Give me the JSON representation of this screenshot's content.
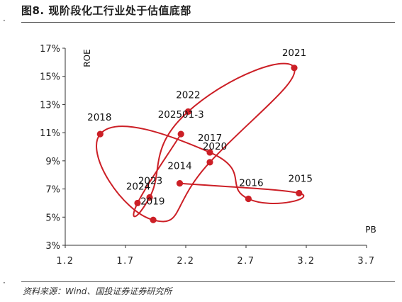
{
  "header": {
    "title": "图8. 现阶段化工行业处于估值底部"
  },
  "footer": {
    "source": "资料来源：Wind、国投证券证券研究所"
  },
  "colors": {
    "series": "#cc1f26",
    "axis": "#333333",
    "text": "#111111"
  },
  "chart_data": {
    "type": "scatter",
    "title": "",
    "xlabel": "PB",
    "ylabel": "ROE",
    "xlim": [
      1.2,
      3.7
    ],
    "ylim": [
      3,
      17
    ],
    "x_ticks": [
      "1.2",
      "1.7",
      "2.2",
      "2.7",
      "3.2",
      "3.7"
    ],
    "y_ticks": [
      "3%",
      "5%",
      "7%",
      "9%",
      "11%",
      "13%",
      "15%",
      "17%"
    ],
    "grid": false,
    "connected": true,
    "points": [
      {
        "label": "2014",
        "x": 2.15,
        "y": 7.4
      },
      {
        "label": "2015",
        "x": 3.14,
        "y": 6.7
      },
      {
        "label": "2016",
        "x": 2.72,
        "y": 6.3
      },
      {
        "label": "2017",
        "x": 2.4,
        "y": 9.6
      },
      {
        "label": "2018",
        "x": 1.49,
        "y": 10.9
      },
      {
        "label": "2019",
        "x": 1.93,
        "y": 4.8
      },
      {
        "label": "2020",
        "x": 2.4,
        "y": 8.9
      },
      {
        "label": "2021",
        "x": 3.1,
        "y": 15.6
      },
      {
        "label": "2022",
        "x": 2.22,
        "y": 12.5
      },
      {
        "label": "2023",
        "x": 1.9,
        "y": 6.4
      },
      {
        "label": "2024",
        "x": 1.8,
        "y": 6.0
      },
      {
        "label": "202501-3",
        "x": 2.16,
        "y": 10.9
      }
    ]
  }
}
